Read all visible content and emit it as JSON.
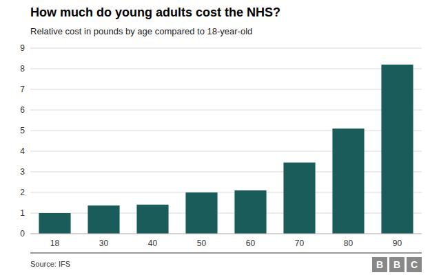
{
  "chart_data": {
    "type": "bar",
    "title": "How much do young adults cost the NHS?",
    "subtitle": "Relative cost in pounds by age compared to 18-year-old",
    "source": "Source: IFS",
    "logo": "BBC",
    "categories": [
      "18",
      "30",
      "40",
      "50",
      "60",
      "70",
      "80",
      "90"
    ],
    "values": [
      1.0,
      1.37,
      1.41,
      2.0,
      2.1,
      3.45,
      5.1,
      8.2
    ],
    "color": "#1a5c5a",
    "ylim": [
      0,
      9
    ],
    "yticks": [
      0,
      1,
      2,
      3,
      4,
      5,
      6,
      7,
      8,
      9
    ],
    "grid": true
  }
}
